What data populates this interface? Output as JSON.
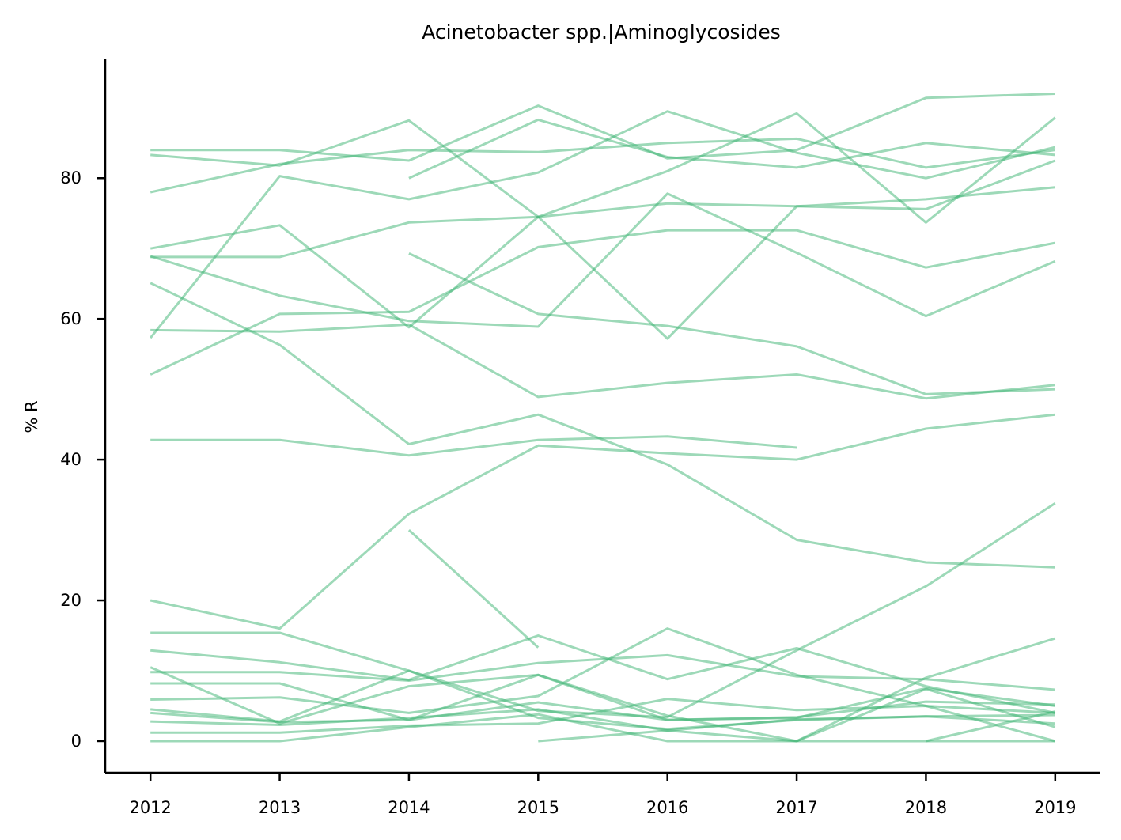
{
  "chart_data": {
    "type": "line",
    "title": "Acinetobacter spp.|Aminoglycosides",
    "xlabel": "",
    "ylabel": "% R",
    "x": [
      2012,
      2013,
      2014,
      2015,
      2016,
      2017,
      2018,
      2019
    ],
    "x_tick_labels": [
      "2012",
      "2013",
      "2014",
      "2015",
      "2016",
      "2017",
      "2018",
      "2019"
    ],
    "y_ticks": [
      0,
      20,
      40,
      60,
      80
    ],
    "y_tick_labels": [
      "0",
      "20",
      "40",
      "60",
      "80"
    ],
    "xlim": [
      2011.65,
      2019.35
    ],
    "ylim": [
      -4.5,
      97
    ],
    "grid": false,
    "line_color": "#3cb371",
    "series": [
      {
        "values": [
          84.0,
          84.0,
          82.5,
          90.3,
          82.8,
          84.0,
          91.4,
          92.0
        ]
      },
      {
        "values": [
          83.3,
          81.8,
          88.2,
          74.5,
          57.2,
          76.0,
          77.0,
          78.7
        ]
      },
      {
        "values": [
          78.0,
          82.0,
          84.0,
          83.7,
          85.0,
          85.6,
          81.5,
          84.0
        ]
      },
      {
        "values": [
          57.3,
          80.3,
          77.0,
          80.8,
          89.5,
          83.6,
          80.0,
          84.4
        ]
      },
      {
        "values": [
          null,
          null,
          80.0,
          88.3,
          83.0,
          81.5,
          85.0,
          83.3
        ]
      },
      {
        "values": [
          70.0,
          73.3,
          58.8,
          74.5,
          81.0,
          89.2,
          73.7,
          88.6
        ]
      },
      {
        "values": [
          68.8,
          68.8,
          73.7,
          74.5,
          76.4,
          76.0,
          75.6,
          82.5
        ]
      },
      {
        "values": [
          52.1,
          60.7,
          61.0,
          70.2,
          72.6,
          72.6,
          67.3,
          70.8
        ]
      },
      {
        "values": [
          68.9,
          63.3,
          59.7,
          58.9,
          77.8,
          69.4,
          60.4,
          68.2
        ]
      },
      {
        "values": [
          null,
          null,
          69.3,
          60.7,
          59.0,
          56.1,
          49.3,
          50.0
        ]
      },
      {
        "values": [
          58.4,
          58.2,
          59.2,
          48.9,
          50.9,
          52.1,
          48.7,
          50.6
        ]
      },
      {
        "values": [
          65.1,
          56.3,
          42.2,
          46.4,
          39.3,
          28.6,
          25.4,
          24.7
        ]
      },
      {
        "values": [
          42.8,
          42.8,
          40.6,
          42.8,
          43.3,
          41.7,
          null,
          null
        ]
      },
      {
        "values": [
          20.0,
          16.0,
          32.3,
          42.0,
          40.9,
          40.0,
          44.4,
          46.4
        ]
      },
      {
        "values": [
          15.4,
          15.4,
          10.0,
          4.3,
          3.4,
          12.9,
          22.0,
          33.8
        ]
      },
      {
        "values": [
          null,
          null,
          30.0,
          13.3,
          null,
          null,
          null,
          null
        ]
      },
      {
        "values": [
          12.9,
          11.2,
          8.7,
          15.0,
          8.8,
          13.2,
          7.8,
          4.0
        ]
      },
      {
        "values": [
          9.8,
          9.8,
          8.6,
          11.1,
          12.2,
          9.2,
          8.8,
          7.3
        ]
      },
      {
        "values": [
          8.2,
          8.2,
          3.0,
          9.4,
          3.6,
          0.0,
          9.0,
          14.6
        ]
      },
      {
        "values": [
          10.5,
          2.5,
          7.8,
          9.4,
          3.0,
          3.3,
          7.5,
          5.0
        ]
      },
      {
        "values": [
          5.9,
          6.2,
          4.0,
          6.4,
          16.0,
          9.4,
          5.0,
          0.0
        ]
      },
      {
        "values": [
          4.5,
          2.8,
          10.0,
          3.3,
          1.7,
          3.0,
          3.5,
          3.7
        ]
      },
      {
        "values": [
          4.0,
          2.7,
          3.0,
          5.5,
          3.0,
          3.4,
          5.6,
          5.2
        ]
      },
      {
        "values": [
          2.8,
          2.3,
          3.3,
          4.5,
          1.5,
          3.1,
          3.5,
          2.5
        ]
      },
      {
        "values": [
          1.2,
          1.2,
          2.2,
          2.5,
          6.0,
          4.4,
          5.0,
          4.0
        ]
      },
      {
        "values": [
          0.0,
          0.0,
          2.0,
          3.8,
          0.0,
          0.0,
          7.4,
          2.0
        ]
      },
      {
        "values": [
          null,
          null,
          null,
          0.0,
          1.5,
          0.0,
          0.0,
          0.0
        ]
      },
      {
        "values": [
          null,
          null,
          null,
          null,
          null,
          null,
          0.0,
          4.2
        ]
      }
    ]
  }
}
